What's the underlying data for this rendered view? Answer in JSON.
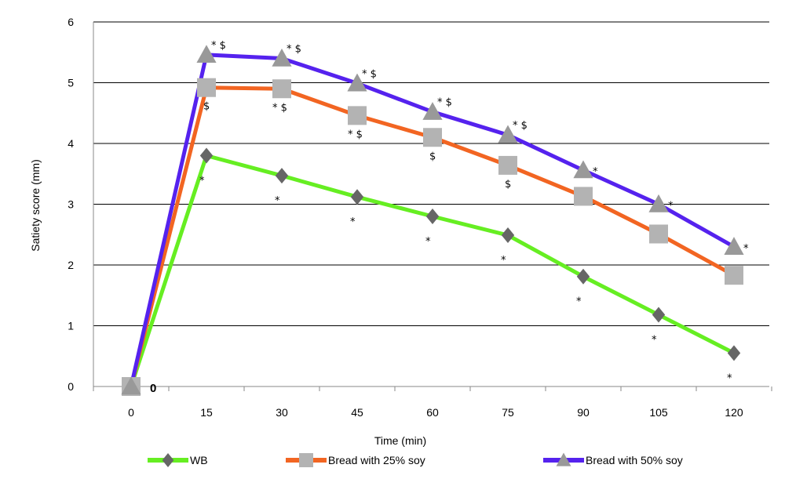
{
  "chart_data": {
    "type": "line",
    "title": "",
    "xlabel": "Time (min)",
    "ylabel": "Satiety score (mm)",
    "x": [
      0,
      15,
      30,
      45,
      60,
      75,
      90,
      105,
      120
    ],
    "x_tick_labels": [
      "0",
      "15",
      "30",
      "45",
      "60",
      "75",
      "90",
      "105",
      "120"
    ],
    "y_tick_labels": [
      "0",
      "1",
      "2",
      "3",
      "4",
      "5",
      "6"
    ],
    "ylim": [
      0,
      6
    ],
    "grid": "horizontal",
    "legend_position": "bottom",
    "origin_label": "0",
    "series": [
      {
        "name": "WB",
        "color": "#66ee22",
        "marker": "diamond",
        "marker_color": "#666666",
        "values": [
          0,
          3.8,
          3.47,
          3.12,
          2.8,
          2.49,
          1.81,
          1.18,
          0.55
        ],
        "annotations": [
          "",
          "*",
          "*",
          "*",
          "*",
          "*",
          "*",
          "*",
          "*"
        ]
      },
      {
        "name": "Bread with 25% soy",
        "color": "#f26522",
        "marker": "square",
        "marker_color": "#b3b3b3",
        "values": [
          0,
          4.92,
          4.9,
          4.46,
          4.1,
          3.64,
          3.13,
          2.51,
          1.83
        ],
        "annotations": [
          "",
          "$",
          "* $",
          "* $",
          "$",
          "$",
          "",
          "",
          ""
        ]
      },
      {
        "name": "Bread with 50% soy",
        "color": "#5522ee",
        "marker": "triangle",
        "marker_color": "#999999",
        "values": [
          0,
          5.46,
          5.4,
          4.99,
          4.52,
          4.14,
          3.56,
          3.0,
          2.3
        ],
        "annotations": [
          "",
          "* $",
          "* $",
          "* $",
          "* $",
          "* $",
          "*",
          "*",
          "*"
        ]
      }
    ]
  }
}
